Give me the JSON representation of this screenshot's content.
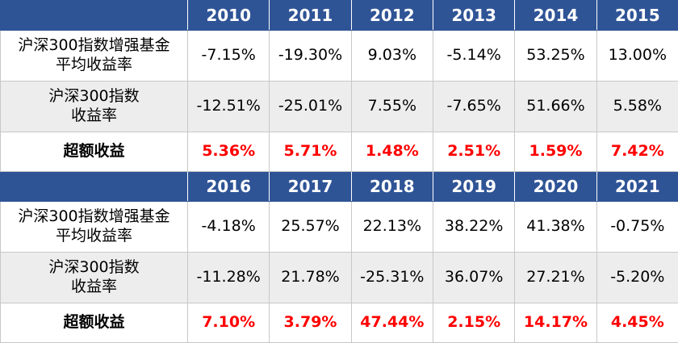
{
  "blocks": [
    {
      "years": [
        "2010",
        "2011",
        "2012",
        "2013",
        "2014",
        "2015"
      ],
      "rows": [
        {
          "label_lines": [
            "沪深300指数增强基金",
            "平均收益率"
          ],
          "values": [
            "-7.15%",
            "-19.30%",
            "9.03%",
            "-5.14%",
            "53.25%",
            "13.00%"
          ]
        },
        {
          "label_lines": [
            "沪深300指数",
            "收益率"
          ],
          "values": [
            "-12.51%",
            "-25.01%",
            "7.55%",
            "-7.65%",
            "51.66%",
            "5.58%"
          ]
        },
        {
          "label_lines": [
            "超额收益"
          ],
          "values": [
            "5.36%",
            "5.71%",
            "1.48%",
            "2.51%",
            "1.59%",
            "7.42%"
          ]
        }
      ]
    },
    {
      "years": [
        "2016",
        "2017",
        "2018",
        "2019",
        "2020",
        "2021"
      ],
      "rows": [
        {
          "label_lines": [
            "沪深300指数增强基金",
            "平均收益率"
          ],
          "values": [
            "-4.18%",
            "25.57%",
            "22.13%",
            "38.22%",
            "41.38%",
            "-0.75%"
          ]
        },
        {
          "label_lines": [
            "沪深300指数",
            "收益率"
          ],
          "values": [
            "-11.28%",
            "21.78%",
            "-25.31%",
            "36.07%",
            "27.21%",
            "-5.20%"
          ]
        },
        {
          "label_lines": [
            "超额收益"
          ],
          "values": [
            "7.10%",
            "3.79%",
            "47.44%",
            "2.15%",
            "14.17%",
            "4.45%"
          ]
        }
      ]
    }
  ],
  "colors": {
    "header_bg": "#2f5496",
    "header_text": "#ffffff",
    "alt_row_bg": "#ededed",
    "excess_text": "#ff0000"
  }
}
